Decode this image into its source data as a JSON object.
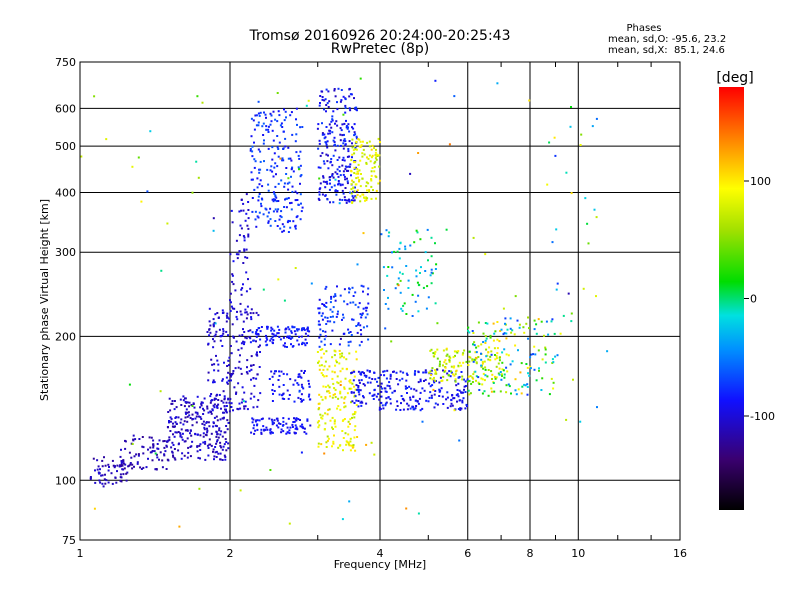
{
  "chart_data": {
    "type": "scatter",
    "title": "Tromsø 20160926 20:24:00-20:25:43",
    "subtitle": "RwPretec (8p)",
    "xlabel": "Frequency [MHz]",
    "ylabel": "Stationary phase Virtual Height [km]",
    "x_scale": "log",
    "y_scale": "log",
    "xlim": [
      1,
      16
    ],
    "ylim": [
      75,
      750
    ],
    "x_ticks": [
      1,
      2,
      4,
      6,
      8,
      10,
      16
    ],
    "x_tick_labels": [
      "1",
      "2",
      "4",
      "6",
      "8",
      "10",
      "16"
    ],
    "y_ticks": [
      75,
      100,
      200,
      300,
      400,
      500,
      600,
      750
    ],
    "y_tick_labels": [
      "75",
      "100",
      "200",
      "300",
      "400",
      "500",
      "600",
      "750"
    ],
    "grid": true,
    "colorbar": {
      "label": "[deg]",
      "range": [
        -180,
        180
      ],
      "ticks": [
        100,
        0,
        -100
      ],
      "tick_labels": [
        "100",
        "0",
        "-100"
      ]
    },
    "stats": {
      "header": "Phases",
      "line1": "mean, sd,O: -95.6, 23.2",
      "line2": "mean, sd,X:  85.1, 24.6"
    },
    "clusters": [
      {
        "f": [
          1.05,
          1.25
        ],
        "h": [
          97,
          112
        ],
        "phase": [
          -125,
          -100
        ],
        "n": 60
      },
      {
        "f": [
          1.2,
          1.5
        ],
        "h": [
          105,
          125
        ],
        "phase": [
          -125,
          -100
        ],
        "n": 80
      },
      {
        "f": [
          1.5,
          2.0
        ],
        "h": [
          110,
          150
        ],
        "phase": [
          -120,
          -95
        ],
        "n": 260
      },
      {
        "f": [
          1.8,
          2.3
        ],
        "h": [
          140,
          230
        ],
        "phase": [
          -115,
          -90
        ],
        "n": 200
      },
      {
        "f": [
          2.0,
          2.2
        ],
        "h": [
          220,
          400
        ],
        "phase": [
          -115,
          -90
        ],
        "n": 60
      },
      {
        "f": [
          2.2,
          2.9
        ],
        "h": [
          125,
          135
        ],
        "phase": [
          -100,
          -80
        ],
        "n": 90
      },
      {
        "f": [
          2.4,
          2.9
        ],
        "h": [
          145,
          170
        ],
        "phase": [
          -100,
          -80
        ],
        "n": 60
      },
      {
        "f": [
          2.2,
          2.9
        ],
        "h": [
          190,
          210
        ],
        "phase": [
          -95,
          -75
        ],
        "n": 100
      },
      {
        "f": [
          2.2,
          2.8
        ],
        "h": [
          330,
          600
        ],
        "phase": [
          -95,
          -60
        ],
        "n": 220
      },
      {
        "f": [
          3.0,
          3.6
        ],
        "h": [
          380,
          660
        ],
        "phase": [
          -110,
          -70
        ],
        "n": 240
      },
      {
        "f": [
          3.5,
          4.0
        ],
        "h": [
          380,
          520
        ],
        "phase": [
          60,
          110
        ],
        "n": 120
      },
      {
        "f": [
          3.0,
          3.6
        ],
        "h": [
          115,
          190
        ],
        "phase": [
          60,
          110
        ],
        "n": 180
      },
      {
        "f": [
          3.0,
          3.8
        ],
        "h": [
          190,
          260
        ],
        "phase": [
          -95,
          -60
        ],
        "n": 110
      },
      {
        "f": [
          3.5,
          6.0
        ],
        "h": [
          140,
          170
        ],
        "phase": [
          -105,
          -75
        ],
        "n": 260
      },
      {
        "f": [
          4.0,
          5.2
        ],
        "h": [
          220,
          340
        ],
        "phase": [
          -60,
          20
        ],
        "n": 70
      },
      {
        "f": [
          5.0,
          7.0
        ],
        "h": [
          160,
          190
        ],
        "phase": [
          40,
          110
        ],
        "n": 130
      },
      {
        "f": [
          6.0,
          9.0
        ],
        "h": [
          150,
          220
        ],
        "phase": [
          -80,
          120
        ],
        "n": 180
      },
      {
        "f": [
          8.5,
          11.5
        ],
        "h": [
          130,
          600
        ],
        "phase": [
          -100,
          120
        ],
        "n": 30
      },
      {
        "f": [
          1.0,
          10.0
        ],
        "h": [
          78,
          700
        ],
        "phase": [
          -120,
          140
        ],
        "n": 90
      }
    ]
  }
}
